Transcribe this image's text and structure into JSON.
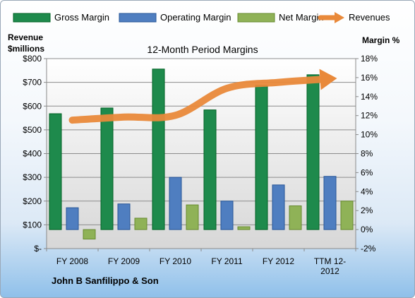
{
  "chart_data": {
    "type": "bar",
    "title": "12-Month Period Margins",
    "left_axis_label": [
      "Revenue",
      "$millions"
    ],
    "right_axis_label": "Margin %",
    "footer": "John B Sanfilippo & Son",
    "categories": [
      [
        "FY 2008"
      ],
      [
        "FY 2009"
      ],
      [
        "FY 2010"
      ],
      [
        "FY 2011"
      ],
      [
        "FY 2012"
      ],
      [
        "TTM 12-",
        "2012"
      ]
    ],
    "left_axis": {
      "min": 0,
      "max": 800,
      "step": 100,
      "tick_labels": [
        "$-",
        "$100",
        "$200",
        "$300",
        "$400",
        "$500",
        "$600",
        "$700",
        "$800"
      ]
    },
    "right_axis": {
      "min": -2,
      "max": 18,
      "step": 2,
      "tick_labels": [
        "-2%",
        "0%",
        "2%",
        "4%",
        "6%",
        "8%",
        "10%",
        "12%",
        "14%",
        "16%",
        "18%"
      ]
    },
    "grid": true,
    "legend_position": "top",
    "series": [
      {
        "name": "Gross Margin",
        "type": "bar",
        "axis": "right",
        "color": "#1e8a4c",
        "values": [
          12.2,
          12.8,
          16.9,
          12.6,
          15.2,
          16.3
        ]
      },
      {
        "name": "Operating Margin",
        "type": "bar",
        "axis": "right",
        "color": "#4f7ec0",
        "values": [
          2.3,
          2.7,
          5.5,
          3.0,
          4.7,
          5.6
        ]
      },
      {
        "name": "Net Margin",
        "type": "bar",
        "axis": "right",
        "color": "#8fb257",
        "values": [
          -1.0,
          1.2,
          2.6,
          0.3,
          2.5,
          3.0
        ]
      },
      {
        "name": "Revenues",
        "type": "line",
        "axis": "left",
        "color": "#e9893a",
        "values": [
          541,
          554,
          561,
          675,
          700,
          715
        ]
      }
    ]
  }
}
